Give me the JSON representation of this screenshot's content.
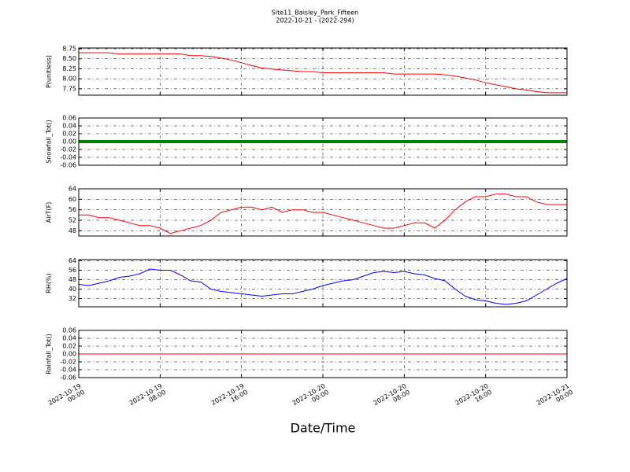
{
  "title": "Site11_Baisley_Park_Fifteen",
  "subtitle": "2022-10-21 - (2022-294)",
  "xlabel": "Date/Time",
  "xlim": [
    "2022-10-19 00:00",
    "2022-10-21 00:00"
  ],
  "xticks": [
    {
      "value": "2022-10-19 00:00",
      "label": "2022-10-19\n00:00"
    },
    {
      "value": "2022-10-19 08:00",
      "label": "2022-10-19\n08:00"
    },
    {
      "value": "2022-10-19 16:00",
      "label": "2022-10-19\n16:00"
    },
    {
      "value": "2022-10-20 00:00",
      "label": "2022-10-20\n00:00"
    },
    {
      "value": "2022-10-20 08:00",
      "label": "2022-10-20\n08:00"
    },
    {
      "value": "2022-10-20 16:00",
      "label": "2022-10-20\n16:00"
    },
    {
      "value": "2022-10-21 00:00",
      "label": "2022-10-21\n00:00"
    }
  ],
  "x": [
    "2022-10-19 00:00",
    "2022-10-19 01:00",
    "2022-10-19 02:00",
    "2022-10-19 03:00",
    "2022-10-19 04:00",
    "2022-10-19 05:00",
    "2022-10-19 06:00",
    "2022-10-19 07:00",
    "2022-10-19 08:00",
    "2022-10-19 09:00",
    "2022-10-19 10:00",
    "2022-10-19 11:00",
    "2022-10-19 12:00",
    "2022-10-19 13:00",
    "2022-10-19 14:00",
    "2022-10-19 15:00",
    "2022-10-19 16:00",
    "2022-10-19 17:00",
    "2022-10-19 18:00",
    "2022-10-19 19:00",
    "2022-10-19 20:00",
    "2022-10-19 21:00",
    "2022-10-19 22:00",
    "2022-10-19 23:00",
    "2022-10-20 00:00",
    "2022-10-20 01:00",
    "2022-10-20 02:00",
    "2022-10-20 03:00",
    "2022-10-20 04:00",
    "2022-10-20 05:00",
    "2022-10-20 06:00",
    "2022-10-20 07:00",
    "2022-10-20 08:00",
    "2022-10-20 09:00",
    "2022-10-20 10:00",
    "2022-10-20 11:00",
    "2022-10-20 12:00",
    "2022-10-20 13:00",
    "2022-10-20 14:00",
    "2022-10-20 15:00",
    "2022-10-20 16:00",
    "2022-10-20 17:00",
    "2022-10-20 18:00",
    "2022-10-20 19:00",
    "2022-10-20 20:00",
    "2022-10-20 21:00",
    "2022-10-20 22:00",
    "2022-10-20 23:00",
    "2022-10-21 00:00"
  ],
  "chart_data": [
    {
      "type": "line",
      "ylabel": "P(unitless)",
      "color": "#ff0000",
      "ylim": [
        7.59,
        8.77
      ],
      "yticks": [
        7.75,
        {
          "value": 8,
          "label": "8.00"
        },
        8.25,
        {
          "value": 8.5,
          "label": "8.50"
        },
        8.75
      ],
      "values": [
        8.65,
        8.65,
        8.65,
        8.65,
        8.62,
        8.62,
        8.62,
        8.62,
        8.62,
        8.62,
        8.62,
        8.58,
        8.58,
        8.56,
        8.52,
        8.47,
        8.4,
        8.33,
        8.27,
        8.24,
        8.22,
        8.2,
        8.18,
        8.18,
        8.15,
        8.15,
        8.15,
        8.15,
        8.15,
        8.15,
        8.15,
        8.12,
        8.12,
        8.12,
        8.12,
        8.12,
        8.1,
        8.07,
        8.02,
        7.97,
        7.9,
        7.85,
        7.8,
        7.75,
        7.72,
        7.68,
        7.65,
        7.65,
        7.65
      ]
    },
    {
      "type": "line",
      "ylabel": "Snowfall_Tot()",
      "color": "#008000",
      "ylim": [
        -0.06,
        0.06
      ],
      "yticks": [
        -0.06,
        -0.04,
        -0.02,
        {
          "value": 0,
          "label": "0.00"
        },
        0.02,
        0.04,
        0.06
      ],
      "values": [
        0,
        0,
        0,
        0,
        0,
        0,
        0,
        0,
        0,
        0,
        0,
        0,
        0,
        0,
        0,
        0,
        0,
        0,
        0,
        0,
        0,
        0,
        0,
        0,
        0,
        0,
        0,
        0,
        0,
        0,
        0,
        0,
        0,
        0,
        0,
        0,
        0,
        0,
        0,
        0,
        0,
        0,
        0,
        0,
        0,
        0,
        0,
        0,
        0
      ]
    },
    {
      "type": "line",
      "ylabel": "AirT(F)",
      "color": "#ff0000",
      "ylim": [
        46,
        64
      ],
      "yticks": [
        48,
        52,
        56,
        60,
        64
      ],
      "values": [
        54,
        54,
        53,
        53,
        52,
        51,
        50,
        50,
        49,
        47,
        48,
        49,
        50,
        52,
        55,
        56,
        57,
        57,
        56,
        57,
        55,
        56,
        56,
        55,
        55,
        54,
        53,
        52,
        51,
        50,
        49,
        49,
        50,
        51,
        51,
        49,
        52,
        56,
        59,
        61,
        61,
        62,
        62,
        61,
        61,
        59,
        58,
        58,
        58
      ]
    },
    {
      "type": "line",
      "ylabel": "RH(%)",
      "color": "#0000ff",
      "ylim": [
        25,
        65
      ],
      "yticks": [
        32,
        40,
        48,
        56,
        64
      ],
      "values": [
        44,
        43,
        45,
        47,
        50,
        51,
        53,
        57,
        56,
        56,
        52,
        47,
        46,
        40,
        38,
        37,
        36,
        35,
        34,
        35,
        36,
        36,
        38,
        40,
        43,
        45,
        47,
        48,
        51,
        54,
        55,
        54,
        55,
        53,
        52,
        49,
        47,
        40,
        34,
        31,
        30,
        28,
        27,
        28,
        30,
        35,
        40,
        45,
        49
      ]
    },
    {
      "type": "line",
      "ylabel": "Rainfall_Tot()",
      "color": "#ff0000",
      "ylim": [
        -0.06,
        0.06
      ],
      "yticks": [
        -0.06,
        -0.04,
        -0.02,
        {
          "value": 0,
          "label": "0.00"
        },
        0.02,
        0.04,
        0.06
      ],
      "values": [
        0,
        0,
        0,
        0,
        0,
        0,
        0,
        0,
        0,
        0,
        0,
        0,
        0,
        0,
        0,
        0,
        0,
        0,
        0,
        0,
        0,
        0,
        0,
        0,
        0,
        0,
        0,
        0,
        0,
        0,
        0,
        0,
        0,
        0,
        0,
        0,
        0,
        0,
        0,
        0,
        0,
        0,
        0,
        0,
        0,
        0,
        0,
        0,
        0
      ]
    }
  ]
}
